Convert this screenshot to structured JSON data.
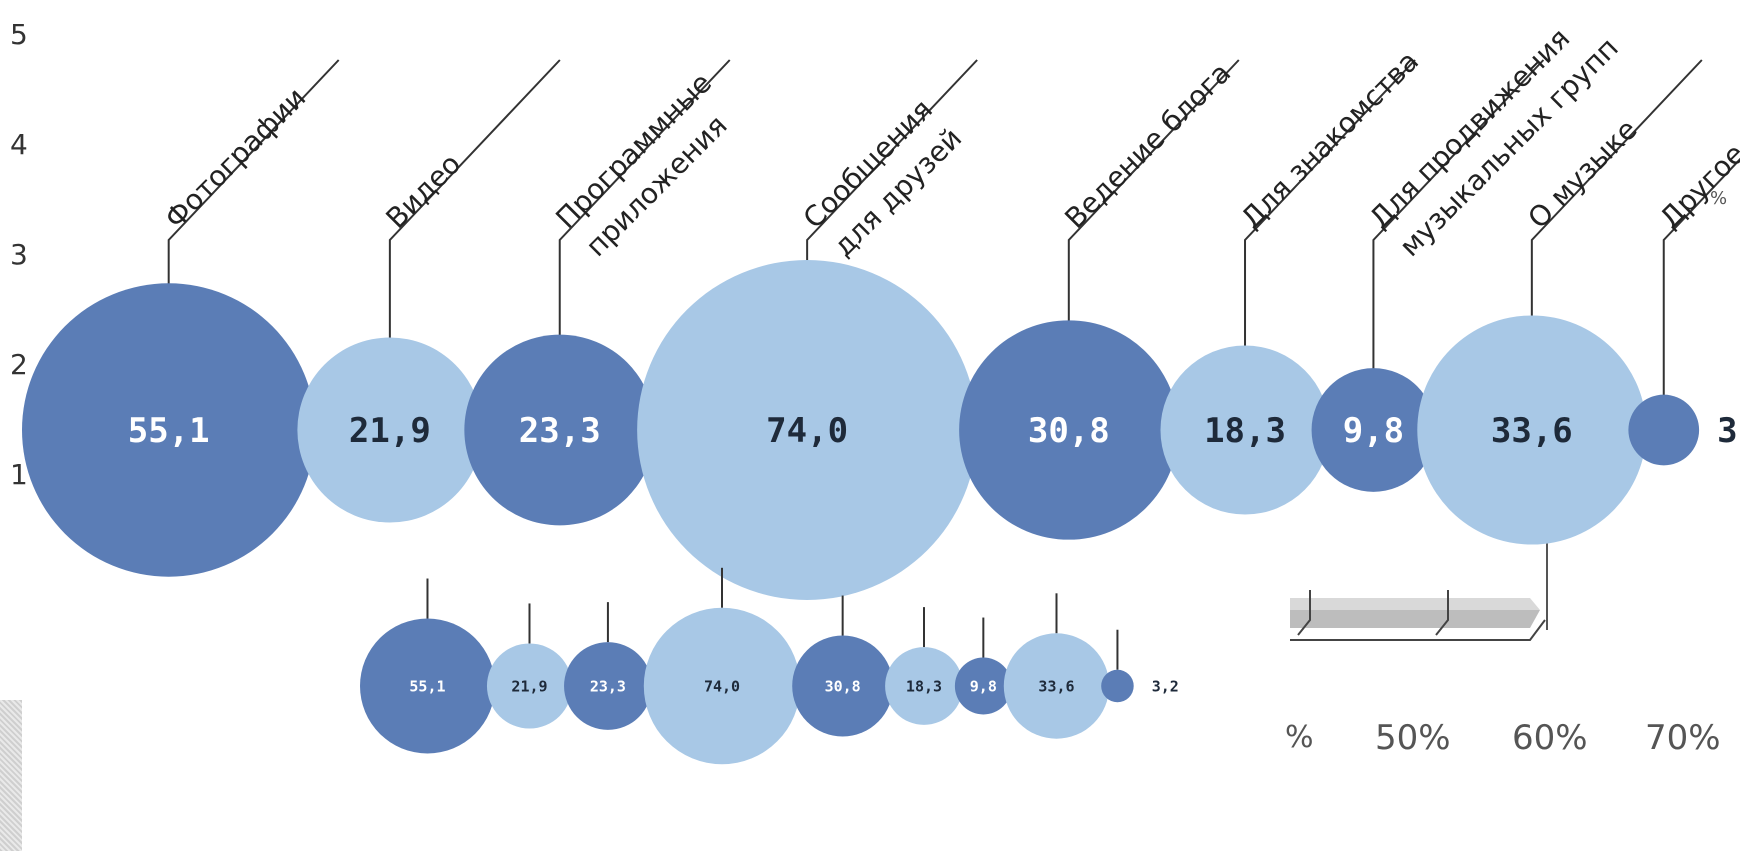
{
  "chart_data": {
    "type": "bubble",
    "categories": [
      "Фотографии",
      "Видео",
      "Программные\nприложения",
      "Сообщения\nдля друзей",
      "Ведение блога",
      "Для знакомства",
      "Для продвижения\nмузыкальных групп",
      "О музыке",
      "Другое"
    ],
    "values": [
      55.1,
      21.9,
      23.3,
      74.0,
      30.8,
      18.3,
      9.8,
      33.6,
      3.2
    ],
    "value_labels": [
      "55,1",
      "21,9",
      "23,3",
      "74,0",
      "30,8",
      "18,3",
      "9,8",
      "33,6",
      "3,2"
    ],
    "colors": [
      "#5b7db6",
      "#a8c8e6",
      "#5b7db6",
      "#a8c8e6",
      "#5b7db6",
      "#a8c8e6",
      "#5b7db6",
      "#a8c8e6",
      "#5b7db6"
    ],
    "label_colors": [
      "#ffffff",
      "#1e2a3a",
      "#ffffff",
      "#1e2a3a",
      "#ffffff",
      "#1e2a3a",
      "#ffffff",
      "#1e2a3a",
      "#1e2a3a"
    ]
  },
  "background_chart": {
    "y_ticks": [
      "5",
      "4",
      "3",
      "2",
      "1"
    ],
    "x_ticks": [
      "%",
      "50%",
      "60%",
      "70%"
    ],
    "side_mark": "%"
  }
}
